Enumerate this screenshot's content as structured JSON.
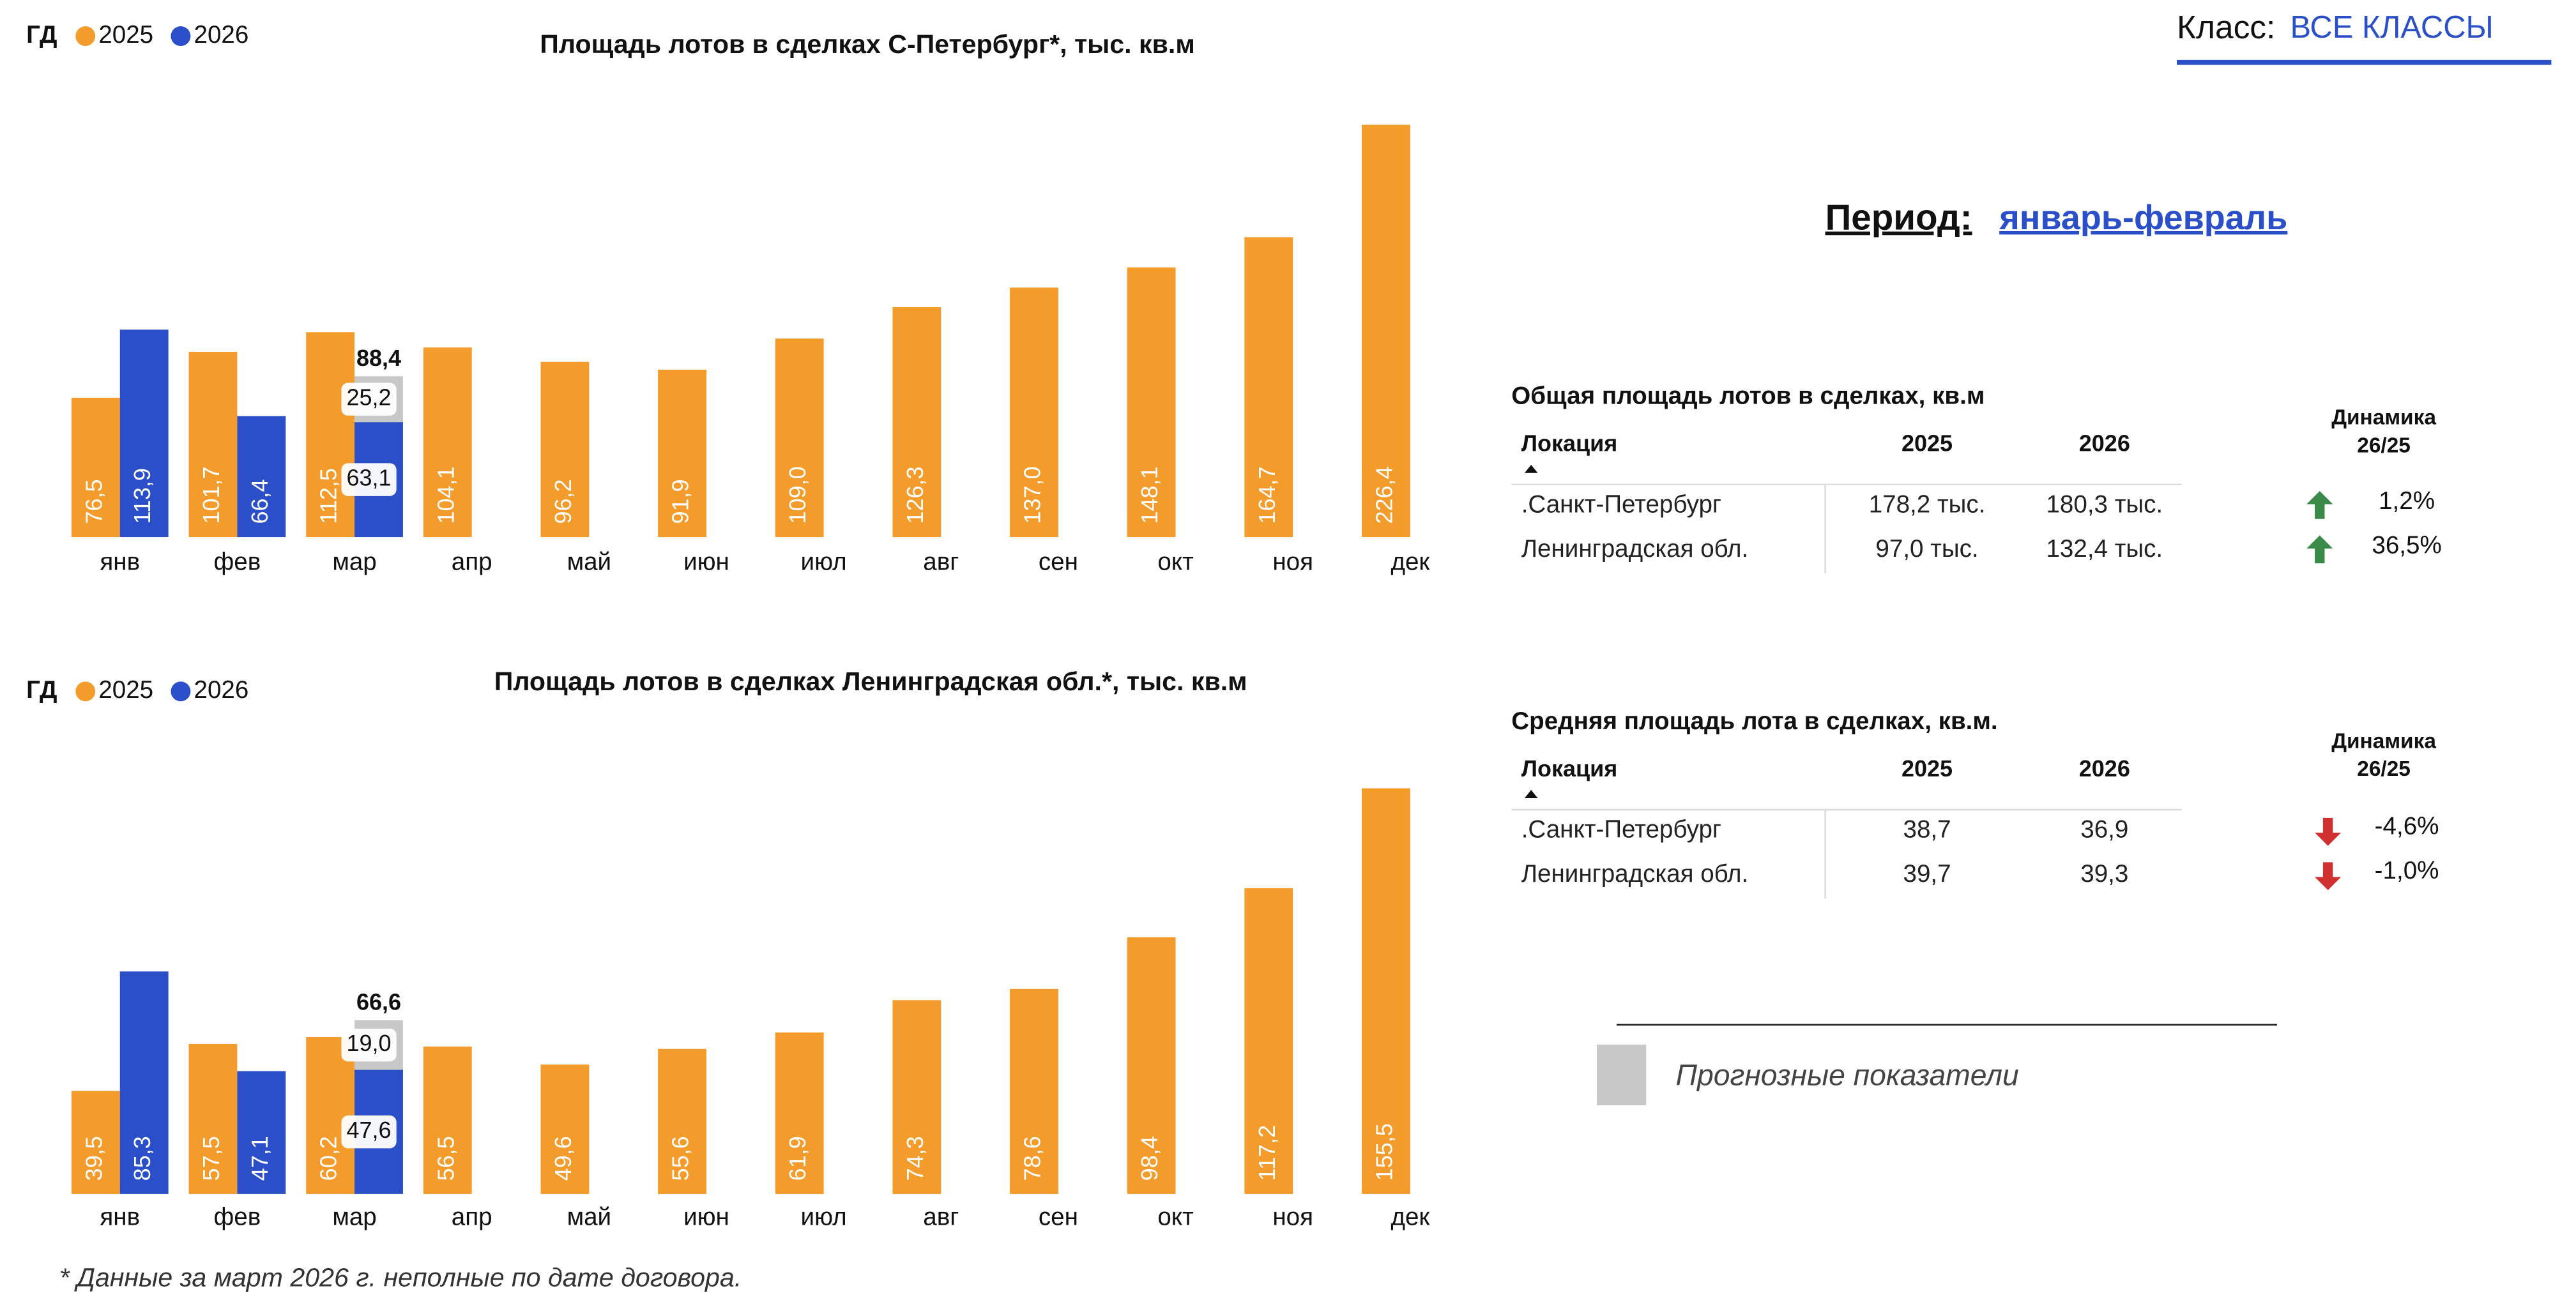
{
  "header": {
    "class_label": "Класс:",
    "class_value": "ВСЕ КЛАССЫ",
    "period_label": "Период:",
    "period_value": "январь-февраль"
  },
  "chart_data": [
    {
      "type": "bar",
      "title": "Площадь лотов в сделках С-Петербург*, тыс. кв.м",
      "legend_title": "ГД",
      "categories": [
        "янв",
        "фев",
        "мар",
        "апр",
        "май",
        "июн",
        "июл",
        "авг",
        "сен",
        "окт",
        "ноя",
        "дек"
      ],
      "series": [
        {
          "name": "2025",
          "color": "#f39c2b",
          "values": [
            76.5,
            101.7,
            112.5,
            104.1,
            96.2,
            91.9,
            109.0,
            126.3,
            137.0,
            148.1,
            164.7,
            226.4
          ],
          "value_labels": [
            "76,5",
            "101,7",
            "112,5",
            "104,1",
            "96,2",
            "91,9",
            "109,0",
            "126,3",
            "137,0",
            "148,1",
            "164,7",
            "226,4"
          ]
        },
        {
          "name": "2026",
          "color": "#2a4fc8",
          "values": [
            113.9,
            66.4,
            63.1,
            null,
            null,
            null,
            null,
            null,
            null,
            null,
            null,
            null
          ],
          "value_labels": [
            "113,9",
            "66,4",
            "63,1",
            null,
            null,
            null,
            null,
            null,
            null,
            null,
            null,
            null
          ]
        }
      ],
      "forecast": {
        "color": "#c8c8c8",
        "values": [
          null,
          null,
          25.2,
          null,
          null,
          null,
          null,
          null,
          null,
          null,
          null,
          null
        ],
        "value_labels": [
          null,
          null,
          "25,2",
          null,
          null,
          null,
          null,
          null,
          null,
          null,
          null,
          null
        ]
      },
      "stack_total": {
        "value": 88.4,
        "label": "88,4"
      }
    },
    {
      "type": "bar",
      "title": "Площадь лотов в сделках Ленинградская обл.*, тыс. кв.м",
      "legend_title": "ГД",
      "categories": [
        "янв",
        "фев",
        "мар",
        "апр",
        "май",
        "июн",
        "июл",
        "авг",
        "сен",
        "окт",
        "ноя",
        "дек"
      ],
      "series": [
        {
          "name": "2025",
          "color": "#f39c2b",
          "values": [
            39.5,
            57.5,
            60.2,
            56.5,
            49.6,
            55.6,
            61.9,
            74.3,
            78.6,
            98.4,
            117.2,
            155.5
          ],
          "value_labels": [
            "39,5",
            "57,5",
            "60,2",
            "56,5",
            "49,6",
            "55,6",
            "61,9",
            "74,3",
            "78,6",
            "98,4",
            "117,2",
            "155,5"
          ]
        },
        {
          "name": "2026",
          "color": "#2a4fc8",
          "values": [
            85.3,
            47.1,
            47.6,
            null,
            null,
            null,
            null,
            null,
            null,
            null,
            null,
            null
          ],
          "value_labels": [
            "85,3",
            "47,1",
            "47,6",
            null,
            null,
            null,
            null,
            null,
            null,
            null,
            null,
            null
          ]
        }
      ],
      "forecast": {
        "color": "#c8c8c8",
        "values": [
          null,
          null,
          19.0,
          null,
          null,
          null,
          null,
          null,
          null,
          null,
          null,
          null
        ],
        "value_labels": [
          null,
          null,
          "19,0",
          null,
          null,
          null,
          null,
          null,
          null,
          null,
          null,
          null
        ]
      },
      "stack_total": {
        "value": 66.6,
        "label": "66,6"
      }
    }
  ],
  "tables": [
    {
      "title": "Общая площадь лотов в сделках, кв.м",
      "columns": [
        "Локация",
        "2025",
        "2026"
      ],
      "dynamics_header": [
        "Динамика",
        "26/25"
      ],
      "rows": [
        [
          ".Санкт-Петербург",
          "178,2 тыс.",
          "180,3 тыс."
        ],
        [
          "Ленинградская обл.",
          "97,0 тыс.",
          "132,4 тыс."
        ]
      ],
      "dynamics": [
        "1,2%",
        "36,5%"
      ],
      "arrows": [
        "up",
        "up"
      ]
    },
    {
      "title": "Средняя площадь лота в сделках, кв.м.",
      "columns": [
        "Локация",
        "2025",
        "2026"
      ],
      "dynamics_header": [
        "Динамика",
        "26/25"
      ],
      "rows": [
        [
          ".Санкт-Петербург",
          "38,7",
          "36,9"
        ],
        [
          "Ленинградская обл.",
          "39,7",
          "39,3"
        ]
      ],
      "dynamics": [
        "-4,6%",
        "-1,0%"
      ],
      "arrows": [
        "down",
        "down"
      ]
    }
  ],
  "forecast_legend": "Прогнозные показатели",
  "footnote": "* Данные за март 2026 г. неполные по дате договора."
}
